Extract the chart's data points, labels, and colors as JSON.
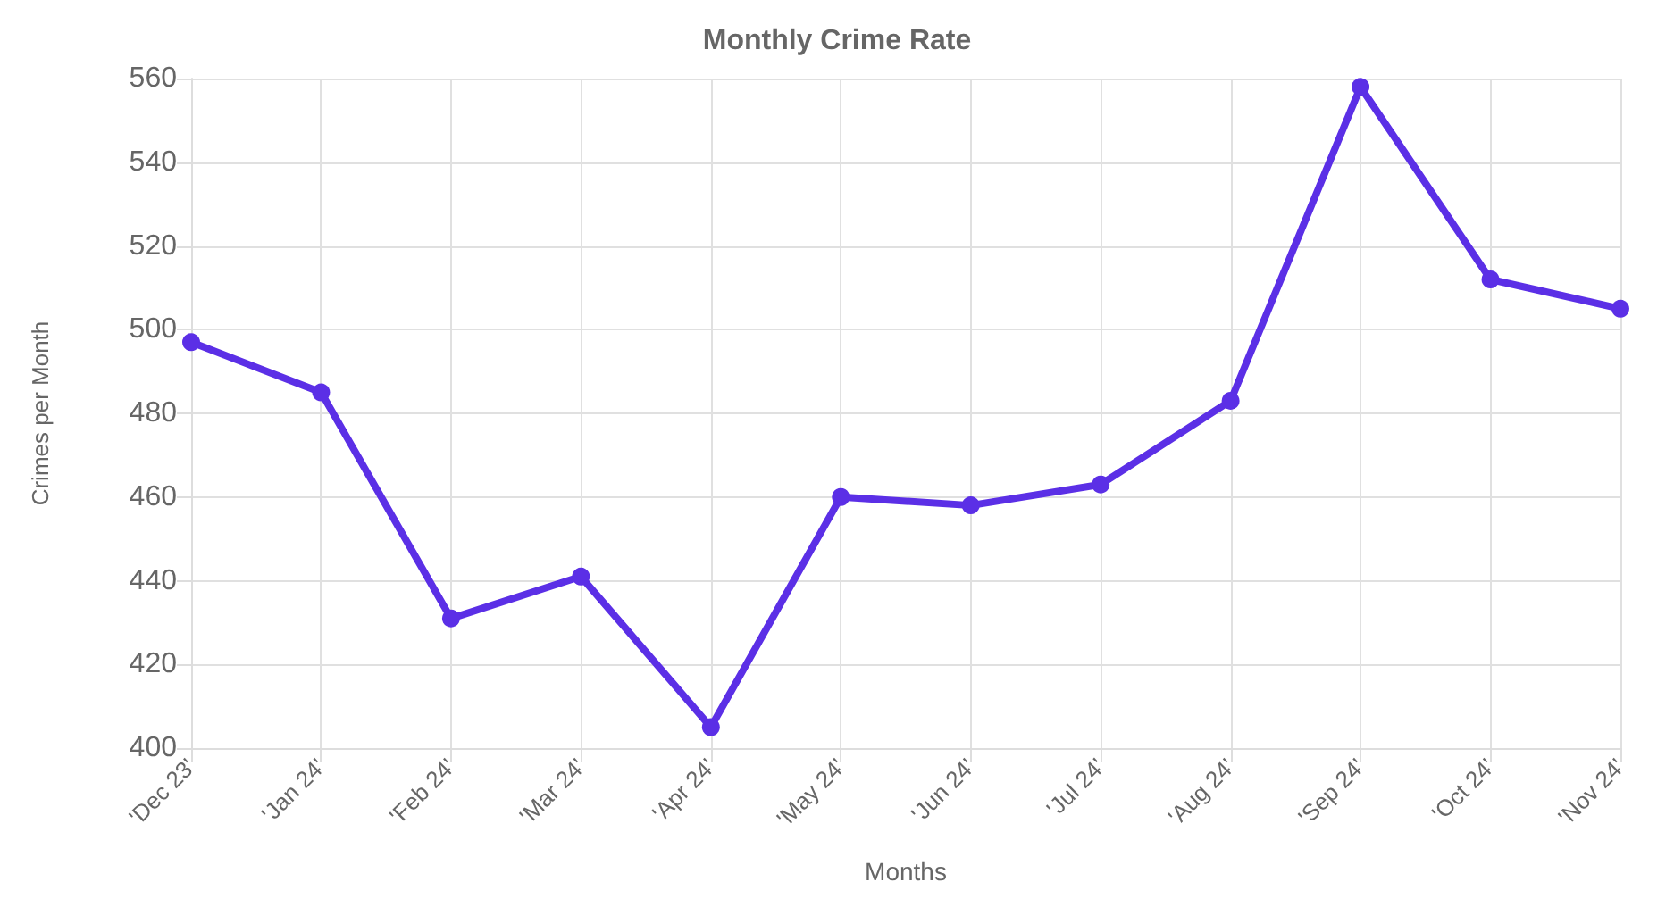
{
  "chart_data": {
    "type": "line",
    "title": "Monthly Crime Rate",
    "xlabel": "Months",
    "ylabel": "Crimes per Month",
    "categories": [
      "'Dec 23'",
      "'Jan 24'",
      "'Feb 24'",
      "'Mar 24'",
      "'Apr 24'",
      "'May 24'",
      "'Jun 24'",
      "'Jul 24'",
      "'Aug 24'",
      "'Sep 24'",
      "'Oct 24'",
      "'Nov 24'"
    ],
    "series": [
      {
        "color": "#5b2fe6",
        "values": [
          497,
          485,
          431,
          441,
          405,
          460,
          458,
          463,
          483,
          558,
          512,
          505
        ]
      }
    ],
    "ylim": [
      400,
      560
    ],
    "yticks": [
      400,
      420,
      440,
      460,
      480,
      500,
      520,
      540,
      560
    ],
    "grid": true,
    "marker": "circle",
    "line_style": "solid"
  }
}
